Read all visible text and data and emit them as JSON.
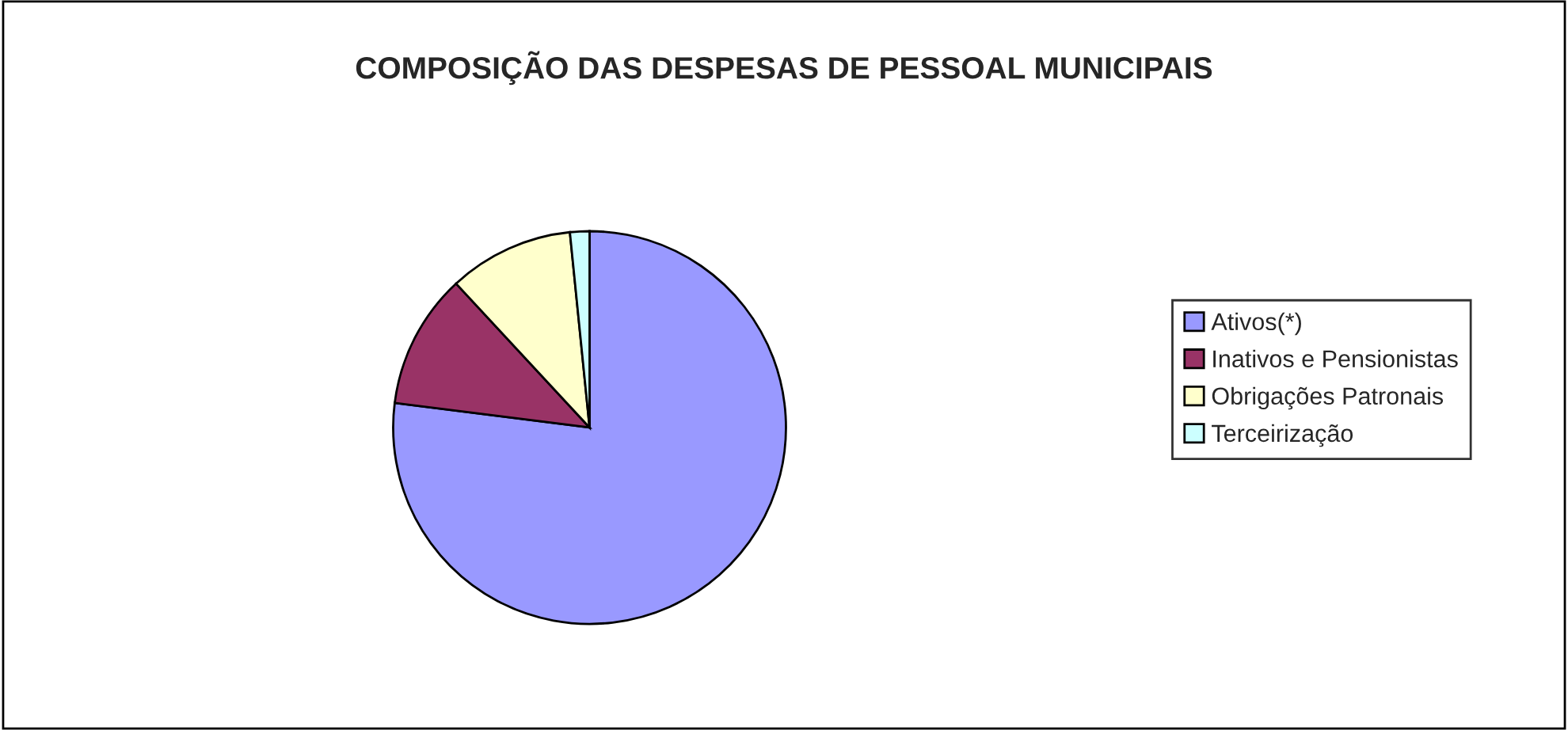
{
  "chart_data": {
    "type": "pie",
    "title": "COMPOSIÇÃO DAS DESPESAS DE PESSOAL MUNICIPAIS",
    "categories": [
      "Ativos(*)",
      "Inativos e Pensionistas",
      "Obrigações Patronais",
      "Terceirização"
    ],
    "values": [
      77.0,
      11.1,
      10.3,
      1.6
    ],
    "colors": [
      "#9999ff",
      "#993366",
      "#ffffcc",
      "#ccffff"
    ],
    "legend": "right"
  }
}
